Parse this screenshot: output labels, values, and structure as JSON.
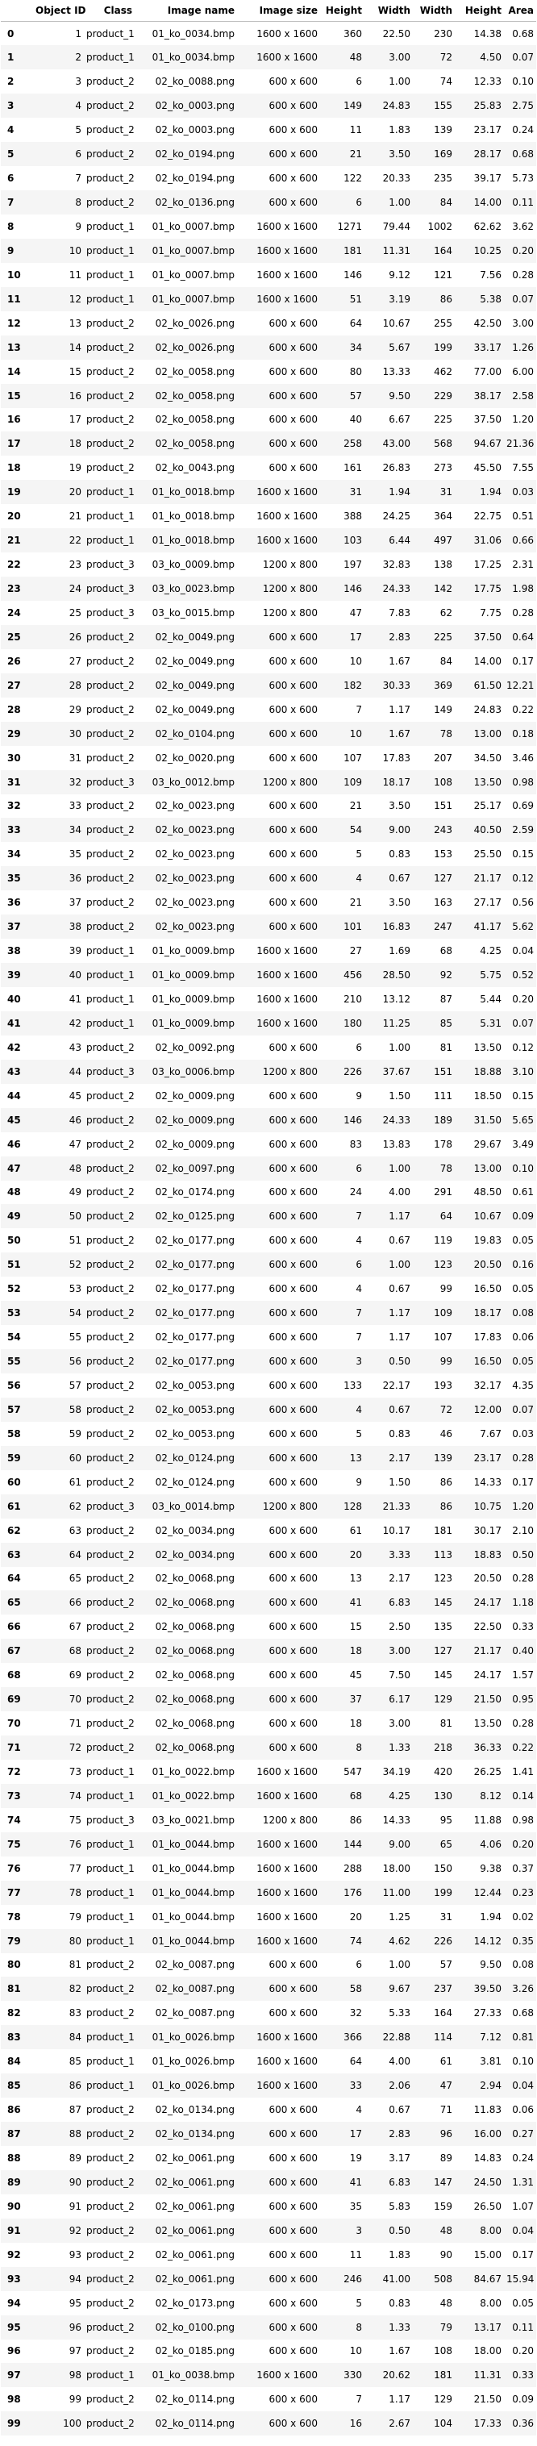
{
  "columns": [
    "",
    "Object ID",
    "Class",
    "Image name",
    "Image size",
    "Height",
    "Width",
    "Width",
    "Height",
    "Area"
  ],
  "rows": [
    [
      "0",
      "1",
      "product_1",
      "01_ko_0034.bmp",
      "1600 x 1600",
      "360",
      "22.50",
      "230",
      "14.38",
      "0.68"
    ],
    [
      "1",
      "2",
      "product_1",
      "01_ko_0034.bmp",
      "1600 x 1600",
      "48",
      "3.00",
      "72",
      "4.50",
      "0.07"
    ],
    [
      "2",
      "3",
      "product_2",
      "02_ko_0088.png",
      "600 x 600",
      "6",
      "1.00",
      "74",
      "12.33",
      "0.10"
    ],
    [
      "3",
      "4",
      "product_2",
      "02_ko_0003.png",
      "600 x 600",
      "149",
      "24.83",
      "155",
      "25.83",
      "2.75"
    ],
    [
      "4",
      "5",
      "product_2",
      "02_ko_0003.png",
      "600 x 600",
      "11",
      "1.83",
      "139",
      "23.17",
      "0.24"
    ],
    [
      "5",
      "6",
      "product_2",
      "02_ko_0194.png",
      "600 x 600",
      "21",
      "3.50",
      "169",
      "28.17",
      "0.68"
    ],
    [
      "6",
      "7",
      "product_2",
      "02_ko_0194.png",
      "600 x 600",
      "122",
      "20.33",
      "235",
      "39.17",
      "5.73"
    ],
    [
      "7",
      "8",
      "product_2",
      "02_ko_0136.png",
      "600 x 600",
      "6",
      "1.00",
      "84",
      "14.00",
      "0.11"
    ],
    [
      "8",
      "9",
      "product_1",
      "01_ko_0007.bmp",
      "1600 x 1600",
      "1271",
      "79.44",
      "1002",
      "62.62",
      "3.62"
    ],
    [
      "9",
      "10",
      "product_1",
      "01_ko_0007.bmp",
      "1600 x 1600",
      "181",
      "11.31",
      "164",
      "10.25",
      "0.20"
    ],
    [
      "10",
      "11",
      "product_1",
      "01_ko_0007.bmp",
      "1600 x 1600",
      "146",
      "9.12",
      "121",
      "7.56",
      "0.28"
    ],
    [
      "11",
      "12",
      "product_1",
      "01_ko_0007.bmp",
      "1600 x 1600",
      "51",
      "3.19",
      "86",
      "5.38",
      "0.07"
    ],
    [
      "12",
      "13",
      "product_2",
      "02_ko_0026.png",
      "600 x 600",
      "64",
      "10.67",
      "255",
      "42.50",
      "3.00"
    ],
    [
      "13",
      "14",
      "product_2",
      "02_ko_0026.png",
      "600 x 600",
      "34",
      "5.67",
      "199",
      "33.17",
      "1.26"
    ],
    [
      "14",
      "15",
      "product_2",
      "02_ko_0058.png",
      "600 x 600",
      "80",
      "13.33",
      "462",
      "77.00",
      "6.00"
    ],
    [
      "15",
      "16",
      "product_2",
      "02_ko_0058.png",
      "600 x 600",
      "57",
      "9.50",
      "229",
      "38.17",
      "2.58"
    ],
    [
      "16",
      "17",
      "product_2",
      "02_ko_0058.png",
      "600 x 600",
      "40",
      "6.67",
      "225",
      "37.50",
      "1.20"
    ],
    [
      "17",
      "18",
      "product_2",
      "02_ko_0058.png",
      "600 x 600",
      "258",
      "43.00",
      "568",
      "94.67",
      "21.36"
    ],
    [
      "18",
      "19",
      "product_2",
      "02_ko_0043.png",
      "600 x 600",
      "161",
      "26.83",
      "273",
      "45.50",
      "7.55"
    ],
    [
      "19",
      "20",
      "product_1",
      "01_ko_0018.bmp",
      "1600 x 1600",
      "31",
      "1.94",
      "31",
      "1.94",
      "0.03"
    ],
    [
      "20",
      "21",
      "product_1",
      "01_ko_0018.bmp",
      "1600 x 1600",
      "388",
      "24.25",
      "364",
      "22.75",
      "0.51"
    ],
    [
      "21",
      "22",
      "product_1",
      "01_ko_0018.bmp",
      "1600 x 1600",
      "103",
      "6.44",
      "497",
      "31.06",
      "0.66"
    ],
    [
      "22",
      "23",
      "product_3",
      "03_ko_0009.bmp",
      "1200 x 800",
      "197",
      "32.83",
      "138",
      "17.25",
      "2.31"
    ],
    [
      "23",
      "24",
      "product_3",
      "03_ko_0023.bmp",
      "1200 x 800",
      "146",
      "24.33",
      "142",
      "17.75",
      "1.98"
    ],
    [
      "24",
      "25",
      "product_3",
      "03_ko_0015.bmp",
      "1200 x 800",
      "47",
      "7.83",
      "62",
      "7.75",
      "0.28"
    ],
    [
      "25",
      "26",
      "product_2",
      "02_ko_0049.png",
      "600 x 600",
      "17",
      "2.83",
      "225",
      "37.50",
      "0.64"
    ],
    [
      "26",
      "27",
      "product_2",
      "02_ko_0049.png",
      "600 x 600",
      "10",
      "1.67",
      "84",
      "14.00",
      "0.17"
    ],
    [
      "27",
      "28",
      "product_2",
      "02_ko_0049.png",
      "600 x 600",
      "182",
      "30.33",
      "369",
      "61.50",
      "12.21"
    ],
    [
      "28",
      "29",
      "product_2",
      "02_ko_0049.png",
      "600 x 600",
      "7",
      "1.17",
      "149",
      "24.83",
      "0.22"
    ],
    [
      "29",
      "30",
      "product_2",
      "02_ko_0104.png",
      "600 x 600",
      "10",
      "1.67",
      "78",
      "13.00",
      "0.18"
    ],
    [
      "30",
      "31",
      "product_2",
      "02_ko_0020.png",
      "600 x 600",
      "107",
      "17.83",
      "207",
      "34.50",
      "3.46"
    ],
    [
      "31",
      "32",
      "product_3",
      "03_ko_0012.bmp",
      "1200 x 800",
      "109",
      "18.17",
      "108",
      "13.50",
      "0.98"
    ],
    [
      "32",
      "33",
      "product_2",
      "02_ko_0023.png",
      "600 x 600",
      "21",
      "3.50",
      "151",
      "25.17",
      "0.69"
    ],
    [
      "33",
      "34",
      "product_2",
      "02_ko_0023.png",
      "600 x 600",
      "54",
      "9.00",
      "243",
      "40.50",
      "2.59"
    ],
    [
      "34",
      "35",
      "product_2",
      "02_ko_0023.png",
      "600 x 600",
      "5",
      "0.83",
      "153",
      "25.50",
      "0.15"
    ],
    [
      "35",
      "36",
      "product_2",
      "02_ko_0023.png",
      "600 x 600",
      "4",
      "0.67",
      "127",
      "21.17",
      "0.12"
    ],
    [
      "36",
      "37",
      "product_2",
      "02_ko_0023.png",
      "600 x 600",
      "21",
      "3.50",
      "163",
      "27.17",
      "0.56"
    ],
    [
      "37",
      "38",
      "product_2",
      "02_ko_0023.png",
      "600 x 600",
      "101",
      "16.83",
      "247",
      "41.17",
      "5.62"
    ],
    [
      "38",
      "39",
      "product_1",
      "01_ko_0009.bmp",
      "1600 x 1600",
      "27",
      "1.69",
      "68",
      "4.25",
      "0.04"
    ],
    [
      "39",
      "40",
      "product_1",
      "01_ko_0009.bmp",
      "1600 x 1600",
      "456",
      "28.50",
      "92",
      "5.75",
      "0.52"
    ],
    [
      "40",
      "41",
      "product_1",
      "01_ko_0009.bmp",
      "1600 x 1600",
      "210",
      "13.12",
      "87",
      "5.44",
      "0.20"
    ],
    [
      "41",
      "42",
      "product_1",
      "01_ko_0009.bmp",
      "1600 x 1600",
      "180",
      "11.25",
      "85",
      "5.31",
      "0.07"
    ],
    [
      "42",
      "43",
      "product_2",
      "02_ko_0092.png",
      "600 x 600",
      "6",
      "1.00",
      "81",
      "13.50",
      "0.12"
    ],
    [
      "43",
      "44",
      "product_3",
      "03_ko_0006.bmp",
      "1200 x 800",
      "226",
      "37.67",
      "151",
      "18.88",
      "3.10"
    ],
    [
      "44",
      "45",
      "product_2",
      "02_ko_0009.png",
      "600 x 600",
      "9",
      "1.50",
      "111",
      "18.50",
      "0.15"
    ],
    [
      "45",
      "46",
      "product_2",
      "02_ko_0009.png",
      "600 x 600",
      "146",
      "24.33",
      "189",
      "31.50",
      "5.65"
    ],
    [
      "46",
      "47",
      "product_2",
      "02_ko_0009.png",
      "600 x 600",
      "83",
      "13.83",
      "178",
      "29.67",
      "3.49"
    ],
    [
      "47",
      "48",
      "product_2",
      "02_ko_0097.png",
      "600 x 600",
      "6",
      "1.00",
      "78",
      "13.00",
      "0.10"
    ],
    [
      "48",
      "49",
      "product_2",
      "02_ko_0174.png",
      "600 x 600",
      "24",
      "4.00",
      "291",
      "48.50",
      "0.61"
    ],
    [
      "49",
      "50",
      "product_2",
      "02_ko_0125.png",
      "600 x 600",
      "7",
      "1.17",
      "64",
      "10.67",
      "0.09"
    ],
    [
      "50",
      "51",
      "product_2",
      "02_ko_0177.png",
      "600 x 600",
      "4",
      "0.67",
      "119",
      "19.83",
      "0.05"
    ],
    [
      "51",
      "52",
      "product_2",
      "02_ko_0177.png",
      "600 x 600",
      "6",
      "1.00",
      "123",
      "20.50",
      "0.16"
    ],
    [
      "52",
      "53",
      "product_2",
      "02_ko_0177.png",
      "600 x 600",
      "4",
      "0.67",
      "99",
      "16.50",
      "0.05"
    ],
    [
      "53",
      "54",
      "product_2",
      "02_ko_0177.png",
      "600 x 600",
      "7",
      "1.17",
      "109",
      "18.17",
      "0.08"
    ],
    [
      "54",
      "55",
      "product_2",
      "02_ko_0177.png",
      "600 x 600",
      "7",
      "1.17",
      "107",
      "17.83",
      "0.06"
    ],
    [
      "55",
      "56",
      "product_2",
      "02_ko_0177.png",
      "600 x 600",
      "3",
      "0.50",
      "99",
      "16.50",
      "0.05"
    ],
    [
      "56",
      "57",
      "product_2",
      "02_ko_0053.png",
      "600 x 600",
      "133",
      "22.17",
      "193",
      "32.17",
      "4.35"
    ],
    [
      "57",
      "58",
      "product_2",
      "02_ko_0053.png",
      "600 x 600",
      "4",
      "0.67",
      "72",
      "12.00",
      "0.07"
    ],
    [
      "58",
      "59",
      "product_2",
      "02_ko_0053.png",
      "600 x 600",
      "5",
      "0.83",
      "46",
      "7.67",
      "0.03"
    ],
    [
      "59",
      "60",
      "product_2",
      "02_ko_0124.png",
      "600 x 600",
      "13",
      "2.17",
      "139",
      "23.17",
      "0.28"
    ],
    [
      "60",
      "61",
      "product_2",
      "02_ko_0124.png",
      "600 x 600",
      "9",
      "1.50",
      "86",
      "14.33",
      "0.17"
    ],
    [
      "61",
      "62",
      "product_3",
      "03_ko_0014.bmp",
      "1200 x 800",
      "128",
      "21.33",
      "86",
      "10.75",
      "1.20"
    ],
    [
      "62",
      "63",
      "product_2",
      "02_ko_0034.png",
      "600 x 600",
      "61",
      "10.17",
      "181",
      "30.17",
      "2.10"
    ],
    [
      "63",
      "64",
      "product_2",
      "02_ko_0034.png",
      "600 x 600",
      "20",
      "3.33",
      "113",
      "18.83",
      "0.50"
    ],
    [
      "64",
      "65",
      "product_2",
      "02_ko_0068.png",
      "600 x 600",
      "13",
      "2.17",
      "123",
      "20.50",
      "0.28"
    ],
    [
      "65",
      "66",
      "product_2",
      "02_ko_0068.png",
      "600 x 600",
      "41",
      "6.83",
      "145",
      "24.17",
      "1.18"
    ],
    [
      "66",
      "67",
      "product_2",
      "02_ko_0068.png",
      "600 x 600",
      "15",
      "2.50",
      "135",
      "22.50",
      "0.33"
    ],
    [
      "67",
      "68",
      "product_2",
      "02_ko_0068.png",
      "600 x 600",
      "18",
      "3.00",
      "127",
      "21.17",
      "0.40"
    ],
    [
      "68",
      "69",
      "product_2",
      "02_ko_0068.png",
      "600 x 600",
      "45",
      "7.50",
      "145",
      "24.17",
      "1.57"
    ],
    [
      "69",
      "70",
      "product_2",
      "02_ko_0068.png",
      "600 x 600",
      "37",
      "6.17",
      "129",
      "21.50",
      "0.95"
    ],
    [
      "70",
      "71",
      "product_2",
      "02_ko_0068.png",
      "600 x 600",
      "18",
      "3.00",
      "81",
      "13.50",
      "0.28"
    ],
    [
      "71",
      "72",
      "product_2",
      "02_ko_0068.png",
      "600 x 600",
      "8",
      "1.33",
      "218",
      "36.33",
      "0.22"
    ],
    [
      "72",
      "73",
      "product_1",
      "01_ko_0022.bmp",
      "1600 x 1600",
      "547",
      "34.19",
      "420",
      "26.25",
      "1.41"
    ],
    [
      "73",
      "74",
      "product_1",
      "01_ko_0022.bmp",
      "1600 x 1600",
      "68",
      "4.25",
      "130",
      "8.12",
      "0.14"
    ],
    [
      "74",
      "75",
      "product_3",
      "03_ko_0021.bmp",
      "1200 x 800",
      "86",
      "14.33",
      "95",
      "11.88",
      "0.98"
    ],
    [
      "75",
      "76",
      "product_1",
      "01_ko_0044.bmp",
      "1600 x 1600",
      "144",
      "9.00",
      "65",
      "4.06",
      "0.20"
    ],
    [
      "76",
      "77",
      "product_1",
      "01_ko_0044.bmp",
      "1600 x 1600",
      "288",
      "18.00",
      "150",
      "9.38",
      "0.37"
    ],
    [
      "77",
      "78",
      "product_1",
      "01_ko_0044.bmp",
      "1600 x 1600",
      "176",
      "11.00",
      "199",
      "12.44",
      "0.23"
    ],
    [
      "78",
      "79",
      "product_1",
      "01_ko_0044.bmp",
      "1600 x 1600",
      "20",
      "1.25",
      "31",
      "1.94",
      "0.02"
    ],
    [
      "79",
      "80",
      "product_1",
      "01_ko_0044.bmp",
      "1600 x 1600",
      "74",
      "4.62",
      "226",
      "14.12",
      "0.35"
    ],
    [
      "80",
      "81",
      "product_2",
      "02_ko_0087.png",
      "600 x 600",
      "6",
      "1.00",
      "57",
      "9.50",
      "0.08"
    ],
    [
      "81",
      "82",
      "product_2",
      "02_ko_0087.png",
      "600 x 600",
      "58",
      "9.67",
      "237",
      "39.50",
      "3.26"
    ],
    [
      "82",
      "83",
      "product_2",
      "02_ko_0087.png",
      "600 x 600",
      "32",
      "5.33",
      "164",
      "27.33",
      "0.68"
    ],
    [
      "83",
      "84",
      "product_1",
      "01_ko_0026.bmp",
      "1600 x 1600",
      "366",
      "22.88",
      "114",
      "7.12",
      "0.81"
    ],
    [
      "84",
      "85",
      "product_1",
      "01_ko_0026.bmp",
      "1600 x 1600",
      "64",
      "4.00",
      "61",
      "3.81",
      "0.10"
    ],
    [
      "85",
      "86",
      "product_1",
      "01_ko_0026.bmp",
      "1600 x 1600",
      "33",
      "2.06",
      "47",
      "2.94",
      "0.04"
    ],
    [
      "86",
      "87",
      "product_2",
      "02_ko_0134.png",
      "600 x 600",
      "4",
      "0.67",
      "71",
      "11.83",
      "0.06"
    ],
    [
      "87",
      "88",
      "product_2",
      "02_ko_0134.png",
      "600 x 600",
      "17",
      "2.83",
      "96",
      "16.00",
      "0.27"
    ],
    [
      "88",
      "89",
      "product_2",
      "02_ko_0061.png",
      "600 x 600",
      "19",
      "3.17",
      "89",
      "14.83",
      "0.24"
    ],
    [
      "89",
      "90",
      "product_2",
      "02_ko_0061.png",
      "600 x 600",
      "41",
      "6.83",
      "147",
      "24.50",
      "1.31"
    ],
    [
      "90",
      "91",
      "product_2",
      "02_ko_0061.png",
      "600 x 600",
      "35",
      "5.83",
      "159",
      "26.50",
      "1.07"
    ],
    [
      "91",
      "92",
      "product_2",
      "02_ko_0061.png",
      "600 x 600",
      "3",
      "0.50",
      "48",
      "8.00",
      "0.04"
    ],
    [
      "92",
      "93",
      "product_2",
      "02_ko_0061.png",
      "600 x 600",
      "11",
      "1.83",
      "90",
      "15.00",
      "0.17"
    ],
    [
      "93",
      "94",
      "product_2",
      "02_ko_0061.png",
      "600 x 600",
      "246",
      "41.00",
      "508",
      "84.67",
      "15.94"
    ],
    [
      "94",
      "95",
      "product_2",
      "02_ko_0173.png",
      "600 x 600",
      "5",
      "0.83",
      "48",
      "8.00",
      "0.05"
    ],
    [
      "95",
      "96",
      "product_2",
      "02_ko_0100.png",
      "600 x 600",
      "8",
      "1.33",
      "79",
      "13.17",
      "0.11"
    ],
    [
      "96",
      "97",
      "product_2",
      "02_ko_0185.png",
      "600 x 600",
      "10",
      "1.67",
      "108",
      "18.00",
      "0.20"
    ],
    [
      "97",
      "98",
      "product_1",
      "01_ko_0038.bmp",
      "1600 x 1600",
      "330",
      "20.62",
      "181",
      "11.31",
      "0.33"
    ],
    [
      "98",
      "99",
      "product_2",
      "02_ko_0114.png",
      "600 x 600",
      "7",
      "1.17",
      "129",
      "21.50",
      "0.09"
    ],
    [
      "99",
      "100",
      "product_2",
      "02_ko_0114.png",
      "600 x 600",
      "16",
      "2.67",
      "104",
      "17.33",
      "0.36"
    ]
  ]
}
